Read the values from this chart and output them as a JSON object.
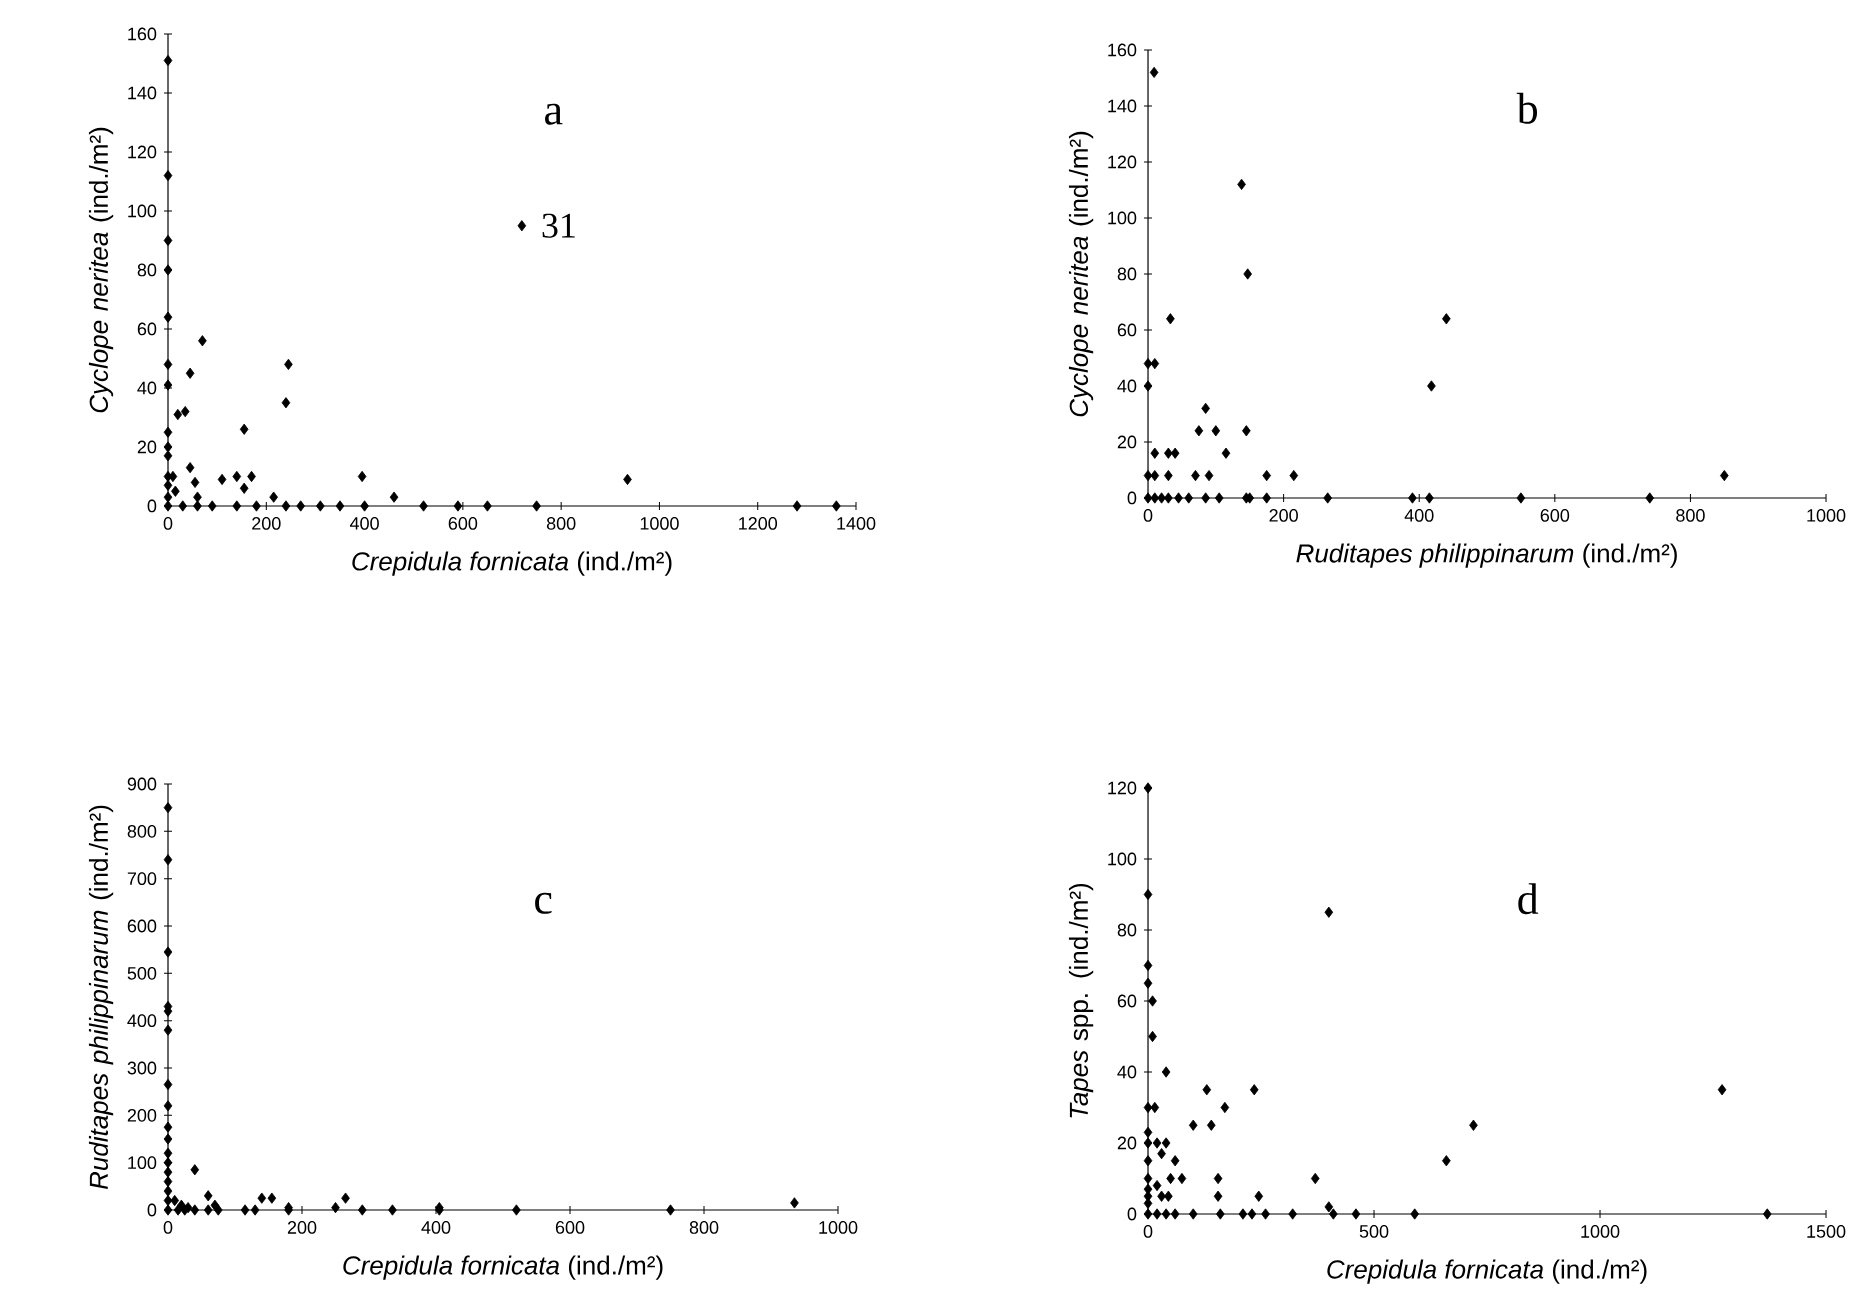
{
  "chart_data": [
    {
      "type": "scatter",
      "xlabel": "*Crepidula fornicata* (ind./m²)",
      "ylabel": "*Cyclope neritea* (ind./m²)",
      "xlim": [
        0,
        1400
      ],
      "ylim": [
        0,
        160
      ],
      "xticks": [
        0,
        200,
        400,
        600,
        800,
        1000,
        1200,
        1400
      ],
      "yticks": [
        0,
        20,
        40,
        60,
        80,
        100,
        120,
        140,
        160
      ],
      "marker": "diamond",
      "annotations": [
        "a",
        {
          "text": "31",
          "x": 720,
          "y": 95
        }
      ],
      "series": [
        {
          "color": "#000000",
          "x": [
            0,
            0,
            0,
            0,
            0,
            0,
            0,
            0,
            0,
            0,
            0,
            0,
            0,
            0,
            20,
            35,
            45,
            70,
            45,
            55,
            60,
            10,
            15,
            30,
            60,
            90,
            110,
            140,
            155,
            155,
            170,
            140,
            180,
            215,
            240,
            245,
            240,
            270,
            310,
            350,
            395,
            400,
            460,
            520,
            590,
            650,
            750,
            935,
            1280,
            1360,
            720
          ],
          "values": [
            151,
            112,
            90,
            80,
            64,
            48,
            41,
            25,
            20,
            17,
            10,
            7,
            3,
            0,
            31,
            32,
            45,
            56,
            13,
            8,
            3,
            10,
            5,
            0,
            0,
            0,
            9,
            10,
            6,
            26,
            10,
            0,
            0,
            3,
            35,
            48,
            0,
            0,
            0,
            0,
            10,
            0,
            3,
            0,
            0,
            0,
            0,
            9,
            0,
            0,
            95
          ]
        }
      ]
    },
    {
      "type": "scatter",
      "xlabel": "*Ruditapes philippinarum* (ind./m²)",
      "ylabel": "*Cyclope neritea* (ind./m²)",
      "xlim": [
        0,
        1000
      ],
      "ylim": [
        0,
        160
      ],
      "xticks": [
        0,
        200,
        400,
        600,
        800,
        1000
      ],
      "yticks": [
        0,
        20,
        40,
        60,
        80,
        100,
        120,
        140,
        160
      ],
      "marker": "diamond",
      "annotations": [
        "b"
      ],
      "series": [
        {
          "color": "#000000",
          "x": [
            9,
            138,
            147,
            33,
            0,
            10,
            0,
            0,
            10,
            10,
            0,
            10,
            20,
            30,
            40,
            30,
            30,
            45,
            60,
            85,
            75,
            100,
            115,
            70,
            90,
            85,
            105,
            145,
            145,
            150,
            175,
            175,
            215,
            265,
            390,
            415,
            418,
            440,
            550,
            740,
            850
          ],
          "values": [
            152,
            112,
            80,
            64,
            48,
            48,
            40,
            8,
            16,
            8,
            0,
            0,
            0,
            16,
            16,
            8,
            0,
            0,
            0,
            32,
            24,
            24,
            16,
            8,
            8,
            0,
            0,
            24,
            0,
            0,
            8,
            0,
            8,
            0,
            0,
            0,
            40,
            64,
            0,
            0,
            8
          ]
        }
      ]
    },
    {
      "type": "scatter",
      "xlabel": "*Crepidula fornicata* (ind./m²)",
      "ylabel": "*Ruditapes philippinarum* (ind./m²)",
      "xlim": [
        0,
        1000
      ],
      "ylim": [
        0,
        900
      ],
      "xticks": [
        0,
        200,
        400,
        600,
        800,
        1000
      ],
      "yticks": [
        0,
        100,
        200,
        300,
        400,
        500,
        600,
        700,
        800,
        900
      ],
      "marker": "diamond",
      "annotations": [
        "c"
      ],
      "series": [
        {
          "color": "#000000",
          "x": [
            0,
            0,
            0,
            0,
            0,
            0,
            0,
            0,
            0,
            0,
            0,
            0,
            0,
            0,
            0,
            0,
            0,
            40,
            10,
            20,
            30,
            60,
            70,
            60,
            15,
            25,
            40,
            75,
            115,
            130,
            140,
            155,
            180,
            180,
            250,
            265,
            290,
            335,
            405,
            405,
            520,
            750,
            935
          ],
          "values": [
            850,
            740,
            545,
            430,
            420,
            380,
            265,
            220,
            175,
            150,
            120,
            100,
            80,
            60,
            40,
            20,
            0,
            85,
            20,
            10,
            5,
            30,
            10,
            0,
            0,
            0,
            0,
            0,
            0,
            0,
            25,
            25,
            0,
            5,
            5,
            25,
            0,
            0,
            0,
            5,
            0,
            0,
            15
          ]
        }
      ]
    },
    {
      "type": "scatter",
      "xlabel": "*Crepidula fornicata* (ind./m²)",
      "ylabel": "*Tapes* spp. (ind./m²)",
      "xlim": [
        0,
        1500
      ],
      "ylim": [
        0,
        120
      ],
      "xticks": [
        0,
        500,
        1000,
        1500
      ],
      "yticks": [
        0,
        20,
        40,
        60,
        80,
        100,
        120
      ],
      "marker": "diamond",
      "annotations": [
        "d"
      ],
      "series": [
        {
          "color": "#000000",
          "x": [
            0,
            0,
            0,
            0,
            0,
            0,
            0,
            0,
            0,
            0,
            0,
            0,
            0,
            10,
            10,
            40,
            15,
            20,
            40,
            30,
            60,
            20,
            30,
            45,
            20,
            40,
            60,
            50,
            75,
            100,
            130,
            140,
            170,
            155,
            155,
            100,
            160,
            210,
            235,
            245,
            230,
            260,
            320,
            370,
            400,
            400,
            410,
            460,
            590,
            660,
            720,
            1270,
            1370
          ],
          "values": [
            120,
            90,
            70,
            65,
            30,
            23,
            20,
            15,
            10,
            7,
            5,
            3,
            0,
            60,
            50,
            40,
            30,
            20,
            20,
            17,
            15,
            8,
            5,
            5,
            0,
            0,
            0,
            10,
            10,
            25,
            35,
            25,
            30,
            10,
            5,
            0,
            0,
            0,
            35,
            5,
            0,
            0,
            0,
            10,
            85,
            2,
            0,
            0,
            0,
            15,
            25,
            35,
            0
          ]
        }
      ]
    }
  ]
}
